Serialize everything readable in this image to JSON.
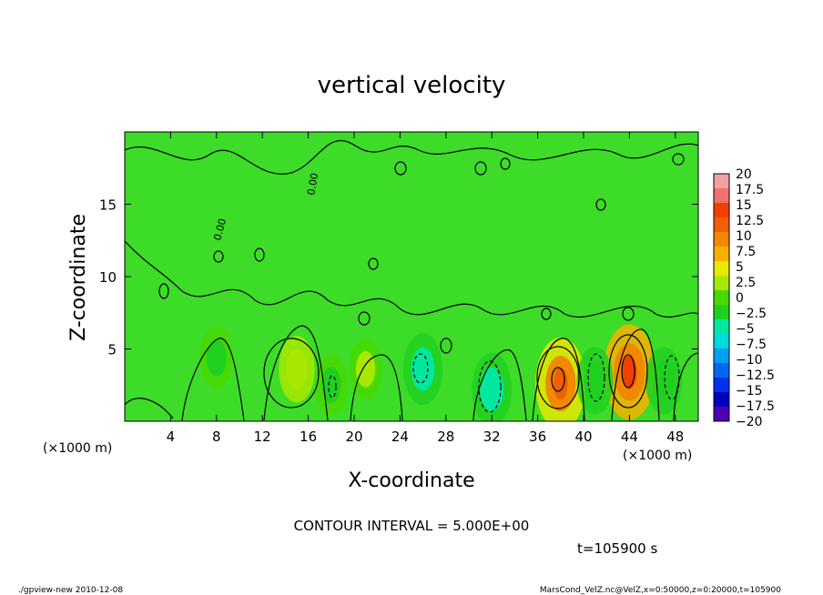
{
  "chart_data": {
    "type": "heatmap",
    "title": "vertical velocity",
    "xlabel": "X-coordinate",
    "ylabel": "Z-coordinate",
    "x_unit": "(×1000 m)",
    "y_unit": "(×1000 m)",
    "xlim": [
      0,
      50
    ],
    "ylim": [
      0,
      20
    ],
    "xticks": [
      4,
      8,
      12,
      16,
      20,
      24,
      28,
      32,
      36,
      40,
      44,
      48
    ],
    "yticks": [
      5,
      10,
      15
    ],
    "contour_interval_text": "CONTOUR INTERVAL = 5.000E+00",
    "time_text": "t=105900 s",
    "contour_label": "0.00",
    "colorbar": {
      "labels": [
        "20",
        "17.5",
        "15",
        "12.5",
        "10",
        "7.5",
        "5",
        "2.5",
        "0",
        "-2.5",
        "-5",
        "-7.5",
        "-10",
        "-12.5",
        "-15",
        "-17.5",
        "-20"
      ],
      "colors": [
        "#f0a0a0",
        "#f07070",
        "#f04000",
        "#f06000",
        "#f08800",
        "#f8b000",
        "#e8e800",
        "#a8e800",
        "#48d800",
        "#20d020",
        "#00e8a0",
        "#00d8e0",
        "#00a0f0",
        "#0068f0",
        "#0030e8",
        "#0000c0",
        "#5000b0"
      ]
    },
    "cells": [
      {
        "x": 15,
        "z": 3.6,
        "w": 4.2
      },
      {
        "x": 38,
        "z": 2.6,
        "w": 13.0
      },
      {
        "x": 44,
        "z": 3.4,
        "w": 14.0
      },
      {
        "x": 21,
        "z": 3.6,
        "w": 2.0
      },
      {
        "x": 32,
        "z": 2.2,
        "w": -6.5
      },
      {
        "x": 26,
        "z": 3.6,
        "w": -6.0
      },
      {
        "x": 41,
        "z": 2.8,
        "w": -4.5
      },
      {
        "x": 47,
        "z": 2.8,
        "w": -4.5
      },
      {
        "x": 8,
        "z": 4.4,
        "w": -2.5
      },
      {
        "x": 18,
        "z": 2.5,
        "w": -2.0
      }
    ]
  },
  "footer": {
    "left": "./gpview-new   2010-12-08",
    "right": "MarsCond_VelZ.nc@VelZ,x=0:50000,z=0:20000,t=105900"
  }
}
